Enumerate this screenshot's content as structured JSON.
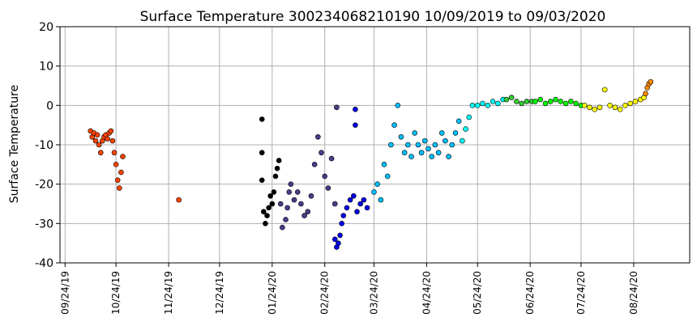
{
  "chart_data": {
    "type": "scatter",
    "title": "Surface Temperature 300234068210190  10/09/2019 to 09/03/2020",
    "xlabel": "",
    "ylabel": "Surface Temperature",
    "ylim": [
      -40,
      20
    ],
    "yticks": [
      "-40",
      "-30",
      "-20",
      "-10",
      "0",
      "10",
      "20"
    ],
    "xlim": [
      "2019-09-21",
      "2020-09-26"
    ],
    "xticks": [
      {
        "date": "2019-09-24",
        "label": "09/24/19"
      },
      {
        "date": "2019-10-24",
        "label": "10/24/19"
      },
      {
        "date": "2019-11-24",
        "label": "11/24/19"
      },
      {
        "date": "2019-12-24",
        "label": "12/24/19"
      },
      {
        "date": "2020-01-24",
        "label": "01/24/20"
      },
      {
        "date": "2020-02-24",
        "label": "02/24/20"
      },
      {
        "date": "2020-03-24",
        "label": "03/24/20"
      },
      {
        "date": "2020-04-24",
        "label": "04/24/20"
      },
      {
        "date": "2020-05-24",
        "label": "05/24/20"
      },
      {
        "date": "2020-06-24",
        "label": "06/24/20"
      },
      {
        "date": "2020-07-24",
        "label": "07/24/20"
      },
      {
        "date": "2020-08-24",
        "label": "08/24/20"
      }
    ],
    "grid": true,
    "series": [
      {
        "color": "#ff4500",
        "points": [
          [
            "2019-10-09",
            -6.5
          ],
          [
            "2019-10-10",
            -8
          ],
          [
            "2019-10-11",
            -7
          ],
          [
            "2019-10-12",
            -9
          ],
          [
            "2019-10-13",
            -7.5
          ],
          [
            "2019-10-14",
            -10
          ],
          [
            "2019-10-15",
            -12
          ],
          [
            "2019-10-16",
            -9
          ],
          [
            "2019-10-17",
            -8
          ],
          [
            "2019-10-18",
            -7.5
          ],
          [
            "2019-10-19",
            -8.5
          ],
          [
            "2019-10-20",
            -7
          ],
          [
            "2019-10-21",
            -6.5
          ],
          [
            "2019-10-22",
            -9
          ],
          [
            "2019-10-23",
            -12
          ],
          [
            "2019-10-24",
            -15
          ],
          [
            "2019-10-25",
            -19
          ],
          [
            "2019-10-26",
            -21
          ],
          [
            "2019-10-27",
            -17
          ],
          [
            "2019-10-28",
            -13
          ],
          [
            "2019-11-30",
            -24
          ]
        ]
      },
      {
        "color": "#000000",
        "points": [
          [
            "2020-01-18",
            -3.5
          ],
          [
            "2020-01-18",
            -12
          ],
          [
            "2020-01-18",
            -19
          ],
          [
            "2020-01-19",
            -27
          ],
          [
            "2020-01-20",
            -30
          ],
          [
            "2020-01-21",
            -28
          ],
          [
            "2020-01-22",
            -26
          ],
          [
            "2020-01-23",
            -23
          ],
          [
            "2020-01-24",
            -25
          ],
          [
            "2020-01-25",
            -22
          ],
          [
            "2020-01-26",
            -18
          ],
          [
            "2020-01-27",
            -16
          ],
          [
            "2020-01-28",
            -14
          ]
        ]
      },
      {
        "color": "#483d8b",
        "points": [
          [
            "2020-01-29",
            -25
          ],
          [
            "2020-01-30",
            -31
          ],
          [
            "2020-02-01",
            -29
          ],
          [
            "2020-02-02",
            -26
          ],
          [
            "2020-02-03",
            -22
          ],
          [
            "2020-02-04",
            -20
          ],
          [
            "2020-02-06",
            -24
          ],
          [
            "2020-02-08",
            -22
          ],
          [
            "2020-02-10",
            -25
          ],
          [
            "2020-02-12",
            -28
          ],
          [
            "2020-02-14",
            -27
          ],
          [
            "2020-02-16",
            -23
          ],
          [
            "2020-02-18",
            -15
          ],
          [
            "2020-02-20",
            -8
          ],
          [
            "2020-02-22",
            -12
          ],
          [
            "2020-02-24",
            -18
          ],
          [
            "2020-02-26",
            -21
          ],
          [
            "2020-02-28",
            -13.5
          ],
          [
            "2020-03-01",
            -25
          ],
          [
            "2020-03-02",
            -0.5
          ]
        ]
      },
      {
        "color": "#0000ee",
        "points": [
          [
            "2020-03-01",
            -34
          ],
          [
            "2020-03-02",
            -36
          ],
          [
            "2020-03-03",
            -35
          ],
          [
            "2020-03-04",
            -33
          ],
          [
            "2020-03-05",
            -30
          ],
          [
            "2020-03-06",
            -28
          ],
          [
            "2020-03-08",
            -26
          ],
          [
            "2020-03-10",
            -24
          ],
          [
            "2020-03-12",
            -23
          ],
          [
            "2020-03-13",
            -5
          ],
          [
            "2020-03-13",
            -1
          ],
          [
            "2020-03-14",
            -27
          ],
          [
            "2020-03-16",
            -25
          ],
          [
            "2020-03-18",
            -24
          ],
          [
            "2020-03-20",
            -26
          ]
        ]
      },
      {
        "color": "#00bfff",
        "points": [
          [
            "2020-03-24",
            -22
          ],
          [
            "2020-03-26",
            -20
          ],
          [
            "2020-03-28",
            -24
          ],
          [
            "2020-03-30",
            -15
          ],
          [
            "2020-04-01",
            -18
          ],
          [
            "2020-04-03",
            -10
          ],
          [
            "2020-04-05",
            -5
          ],
          [
            "2020-04-07",
            0
          ],
          [
            "2020-04-09",
            -8
          ],
          [
            "2020-04-11",
            -12
          ],
          [
            "2020-04-13",
            -10
          ],
          [
            "2020-04-15",
            -13
          ],
          [
            "2020-04-17",
            -7
          ],
          [
            "2020-04-19",
            -10
          ],
          [
            "2020-04-21",
            -12
          ],
          [
            "2020-04-23",
            -9
          ],
          [
            "2020-04-25",
            -11
          ],
          [
            "2020-04-27",
            -13
          ],
          [
            "2020-04-29",
            -10
          ],
          [
            "2020-05-01",
            -12
          ],
          [
            "2020-05-03",
            -7
          ],
          [
            "2020-05-05",
            -9
          ],
          [
            "2020-05-07",
            -13
          ],
          [
            "2020-05-09",
            -10
          ],
          [
            "2020-05-11",
            -7
          ],
          [
            "2020-05-13",
            -4
          ]
        ]
      },
      {
        "color": "#00ffff",
        "points": [
          [
            "2020-05-15",
            -9
          ],
          [
            "2020-05-17",
            -6
          ],
          [
            "2020-05-19",
            -3
          ],
          [
            "2020-05-21",
            0
          ],
          [
            "2020-05-24",
            0
          ],
          [
            "2020-05-27",
            0.5
          ],
          [
            "2020-05-30",
            0
          ],
          [
            "2020-06-02",
            1
          ],
          [
            "2020-06-05",
            0.5
          ],
          [
            "2020-06-08",
            1.5
          ]
        ]
      },
      {
        "color": "#32cd32",
        "points": [
          [
            "2020-06-10",
            1.5
          ],
          [
            "2020-06-13",
            2
          ],
          [
            "2020-06-16",
            1
          ],
          [
            "2020-06-19",
            0.5
          ],
          [
            "2020-06-22",
            1
          ],
          [
            "2020-06-25",
            1
          ]
        ]
      },
      {
        "color": "#00ff00",
        "points": [
          [
            "2020-06-27",
            1
          ],
          [
            "2020-06-30",
            1.5
          ],
          [
            "2020-07-03",
            0.5
          ],
          [
            "2020-07-06",
            1
          ],
          [
            "2020-07-09",
            1.5
          ],
          [
            "2020-07-12",
            1
          ],
          [
            "2020-07-15",
            0.5
          ],
          [
            "2020-07-18",
            1
          ],
          [
            "2020-07-21",
            0.5
          ],
          [
            "2020-07-24",
            0
          ]
        ]
      },
      {
        "color": "#ffff00",
        "points": [
          [
            "2020-07-26",
            0
          ],
          [
            "2020-07-29",
            -0.5
          ],
          [
            "2020-08-01",
            -1
          ],
          [
            "2020-08-04",
            -0.5
          ],
          [
            "2020-08-07",
            4
          ],
          [
            "2020-08-10",
            0
          ],
          [
            "2020-08-13",
            -0.5
          ],
          [
            "2020-08-16",
            -1
          ],
          [
            "2020-08-19",
            0
          ],
          [
            "2020-08-22",
            0.5
          ],
          [
            "2020-08-25",
            1
          ],
          [
            "2020-08-28",
            1.5
          ],
          [
            "2020-08-30",
            2
          ]
        ]
      },
      {
        "color": "#ff8c00",
        "points": [
          [
            "2020-08-31",
            3
          ],
          [
            "2020-09-01",
            4.5
          ],
          [
            "2020-09-02",
            5.5
          ],
          [
            "2020-09-03",
            6
          ]
        ]
      }
    ]
  }
}
